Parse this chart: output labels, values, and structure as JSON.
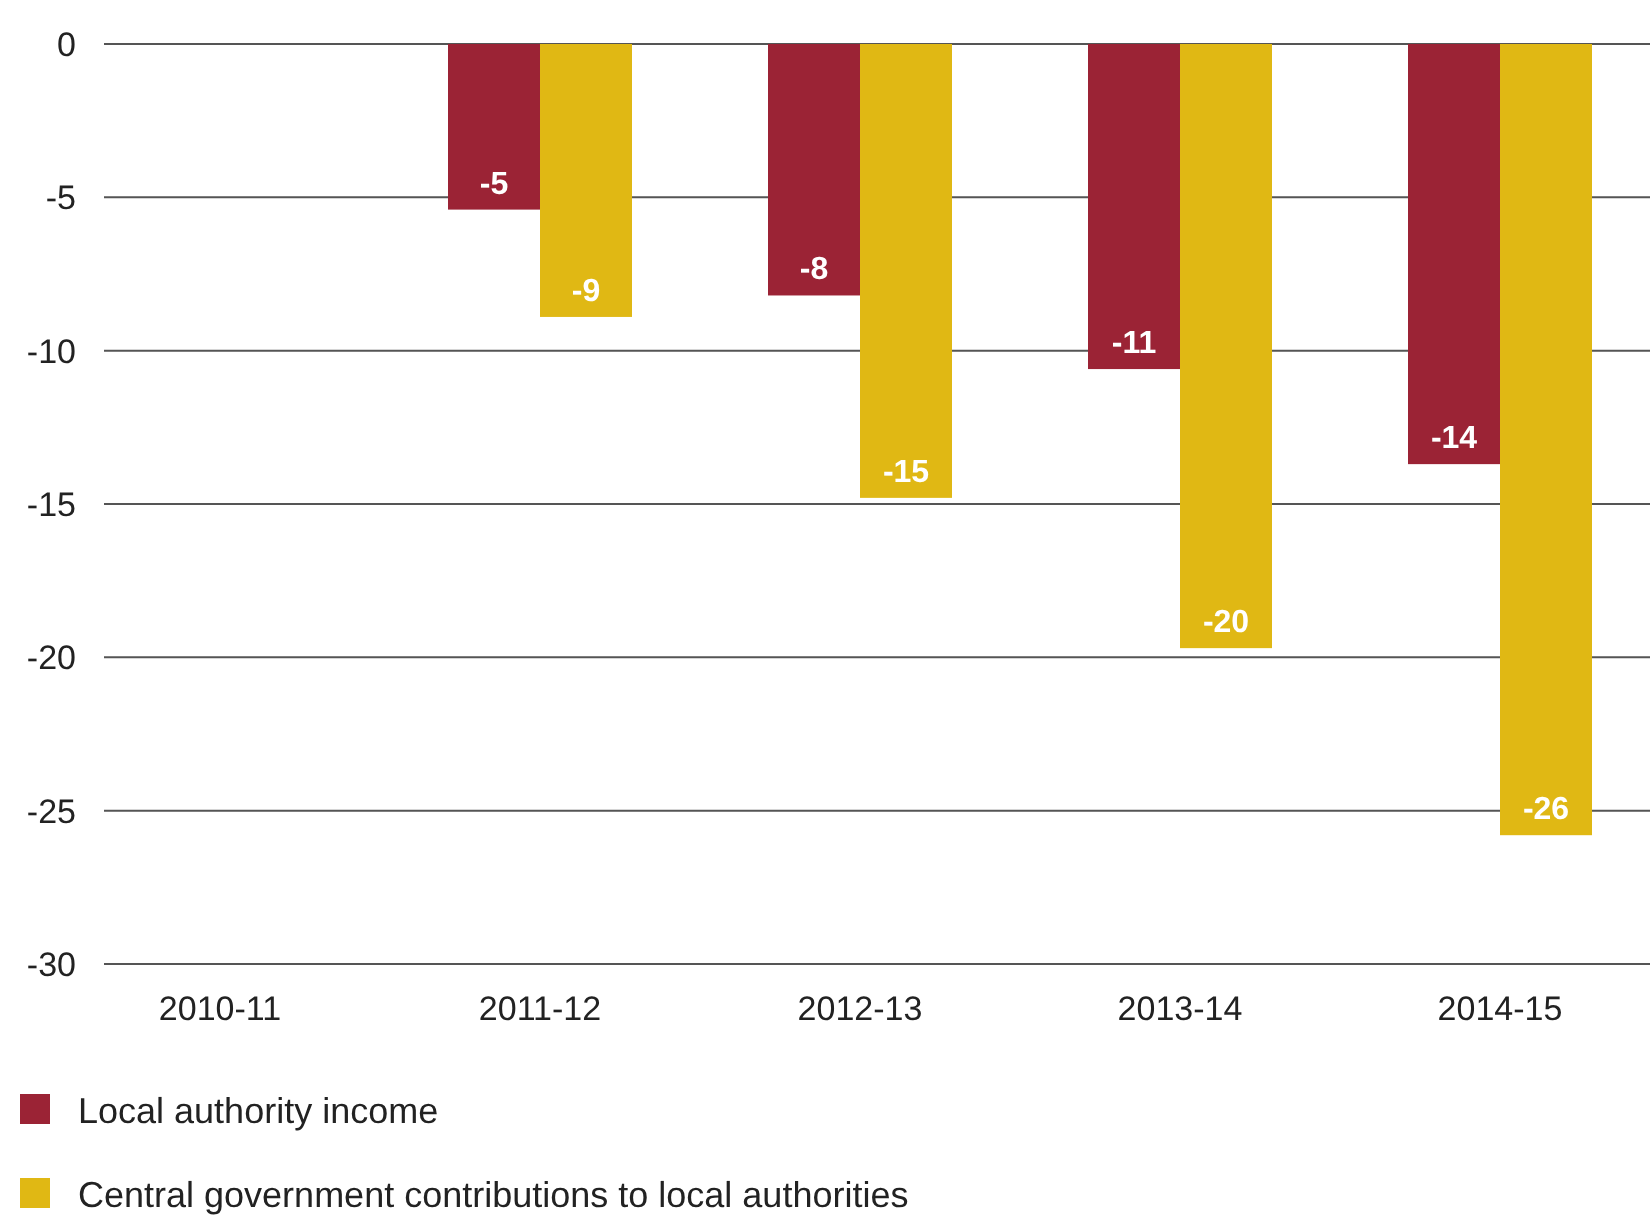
{
  "chart_data": {
    "type": "bar",
    "categories": [
      "2010-11",
      "2011-12",
      "2012-13",
      "2013-14",
      "2014-15"
    ],
    "series": [
      {
        "name": "Local authority income",
        "color": "#9b2335",
        "values": [
          0,
          -5.4,
          -8.2,
          -10.6,
          -13.7
        ],
        "value_labels": [
          null,
          "-5",
          "-8",
          "-11",
          "-14"
        ]
      },
      {
        "name": "Central government contributions to local authorities",
        "color": "#e0b814",
        "values": [
          0,
          -8.9,
          -14.8,
          -19.7,
          -25.8
        ],
        "value_labels": [
          null,
          "-9",
          "-15",
          "-20",
          "-26"
        ]
      }
    ],
    "ylim": [
      -30,
      0
    ],
    "yticks": [
      0,
      -5,
      -10,
      -15,
      -20,
      -25,
      -30
    ],
    "grid": "y",
    "legend": "bottom"
  }
}
